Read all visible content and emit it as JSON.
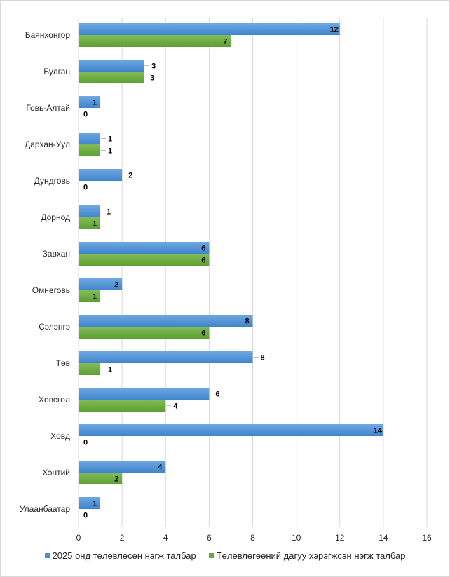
{
  "chart_data": {
    "type": "bar",
    "orientation": "horizontal",
    "categories": [
      "Баянхонгор",
      "Булган",
      "Говь-Алтай",
      "Дархан-Уул",
      "Дундговь",
      "Дорнод",
      "Завхан",
      "Өмнөговь",
      "Сэлэнгэ",
      "Төв",
      "Хөвсгөл",
      "Ховд",
      "Хэнтий",
      "Улаанбаатар"
    ],
    "series": [
      {
        "name": "2025 онд төлөвлөсөн нэгж талбар",
        "color": "#4a8fd6",
        "values": [
          12,
          3,
          1,
          1,
          2,
          1,
          6,
          2,
          8,
          8,
          6,
          14,
          4,
          1
        ]
      },
      {
        "name": "Төлөвлөгөөний дагуу хэрэгжсэн нэгж талбар",
        "color": "#6aaa3a",
        "values": [
          7,
          3,
          0,
          1,
          0,
          1,
          6,
          1,
          6,
          1,
          4,
          0,
          2,
          0
        ]
      }
    ],
    "xlim": [
      0,
      16
    ],
    "x_ticks": [
      "0",
      "2",
      "4",
      "6",
      "8",
      "10",
      "12",
      "14",
      "16"
    ],
    "grid": true,
    "legend": "bottom",
    "data_labels": true
  }
}
